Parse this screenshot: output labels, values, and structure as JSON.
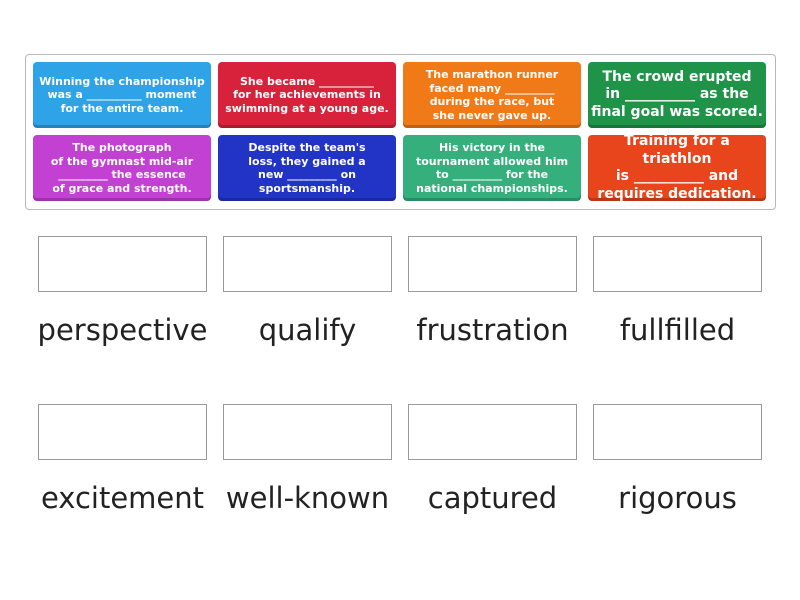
{
  "cards": [
    {
      "text": "Winning the championship\nwas a __________ moment\nfor the entire team.",
      "color": "#2ea3e8"
    },
    {
      "text": "She became __________\nfor her achievements in\nswimming at a young age.",
      "color": "#d8213b"
    },
    {
      "text": "The marathon runner\nfaced many _________\nduring the race, but\nshe never gave up.",
      "color": "#f07a18"
    },
    {
      "text": "The crowd erupted\nin __________ as the\nfinal goal was scored.",
      "color": "#1f9348"
    },
    {
      "text": "The photograph\nof the gymnast mid-air\n_________ the essence\nof grace and strength.",
      "color": "#c241d2"
    },
    {
      "text": "Despite the team's\nloss, they gained a\nnew _________ on\nsportsmanship.",
      "color": "#2234c6"
    },
    {
      "text": "His victory in the\ntournament allowed him\nto _________ for the\nnational championships.",
      "color": "#35b07c"
    },
    {
      "text": "Training for a triathlon\nis __________ and\nrequires dedication.",
      "color": "#e8451d"
    }
  ],
  "words": [
    "perspective",
    "qualify",
    "frustration",
    "fullfilled",
    "excitement",
    "well-known",
    "captured",
    "rigorous"
  ]
}
